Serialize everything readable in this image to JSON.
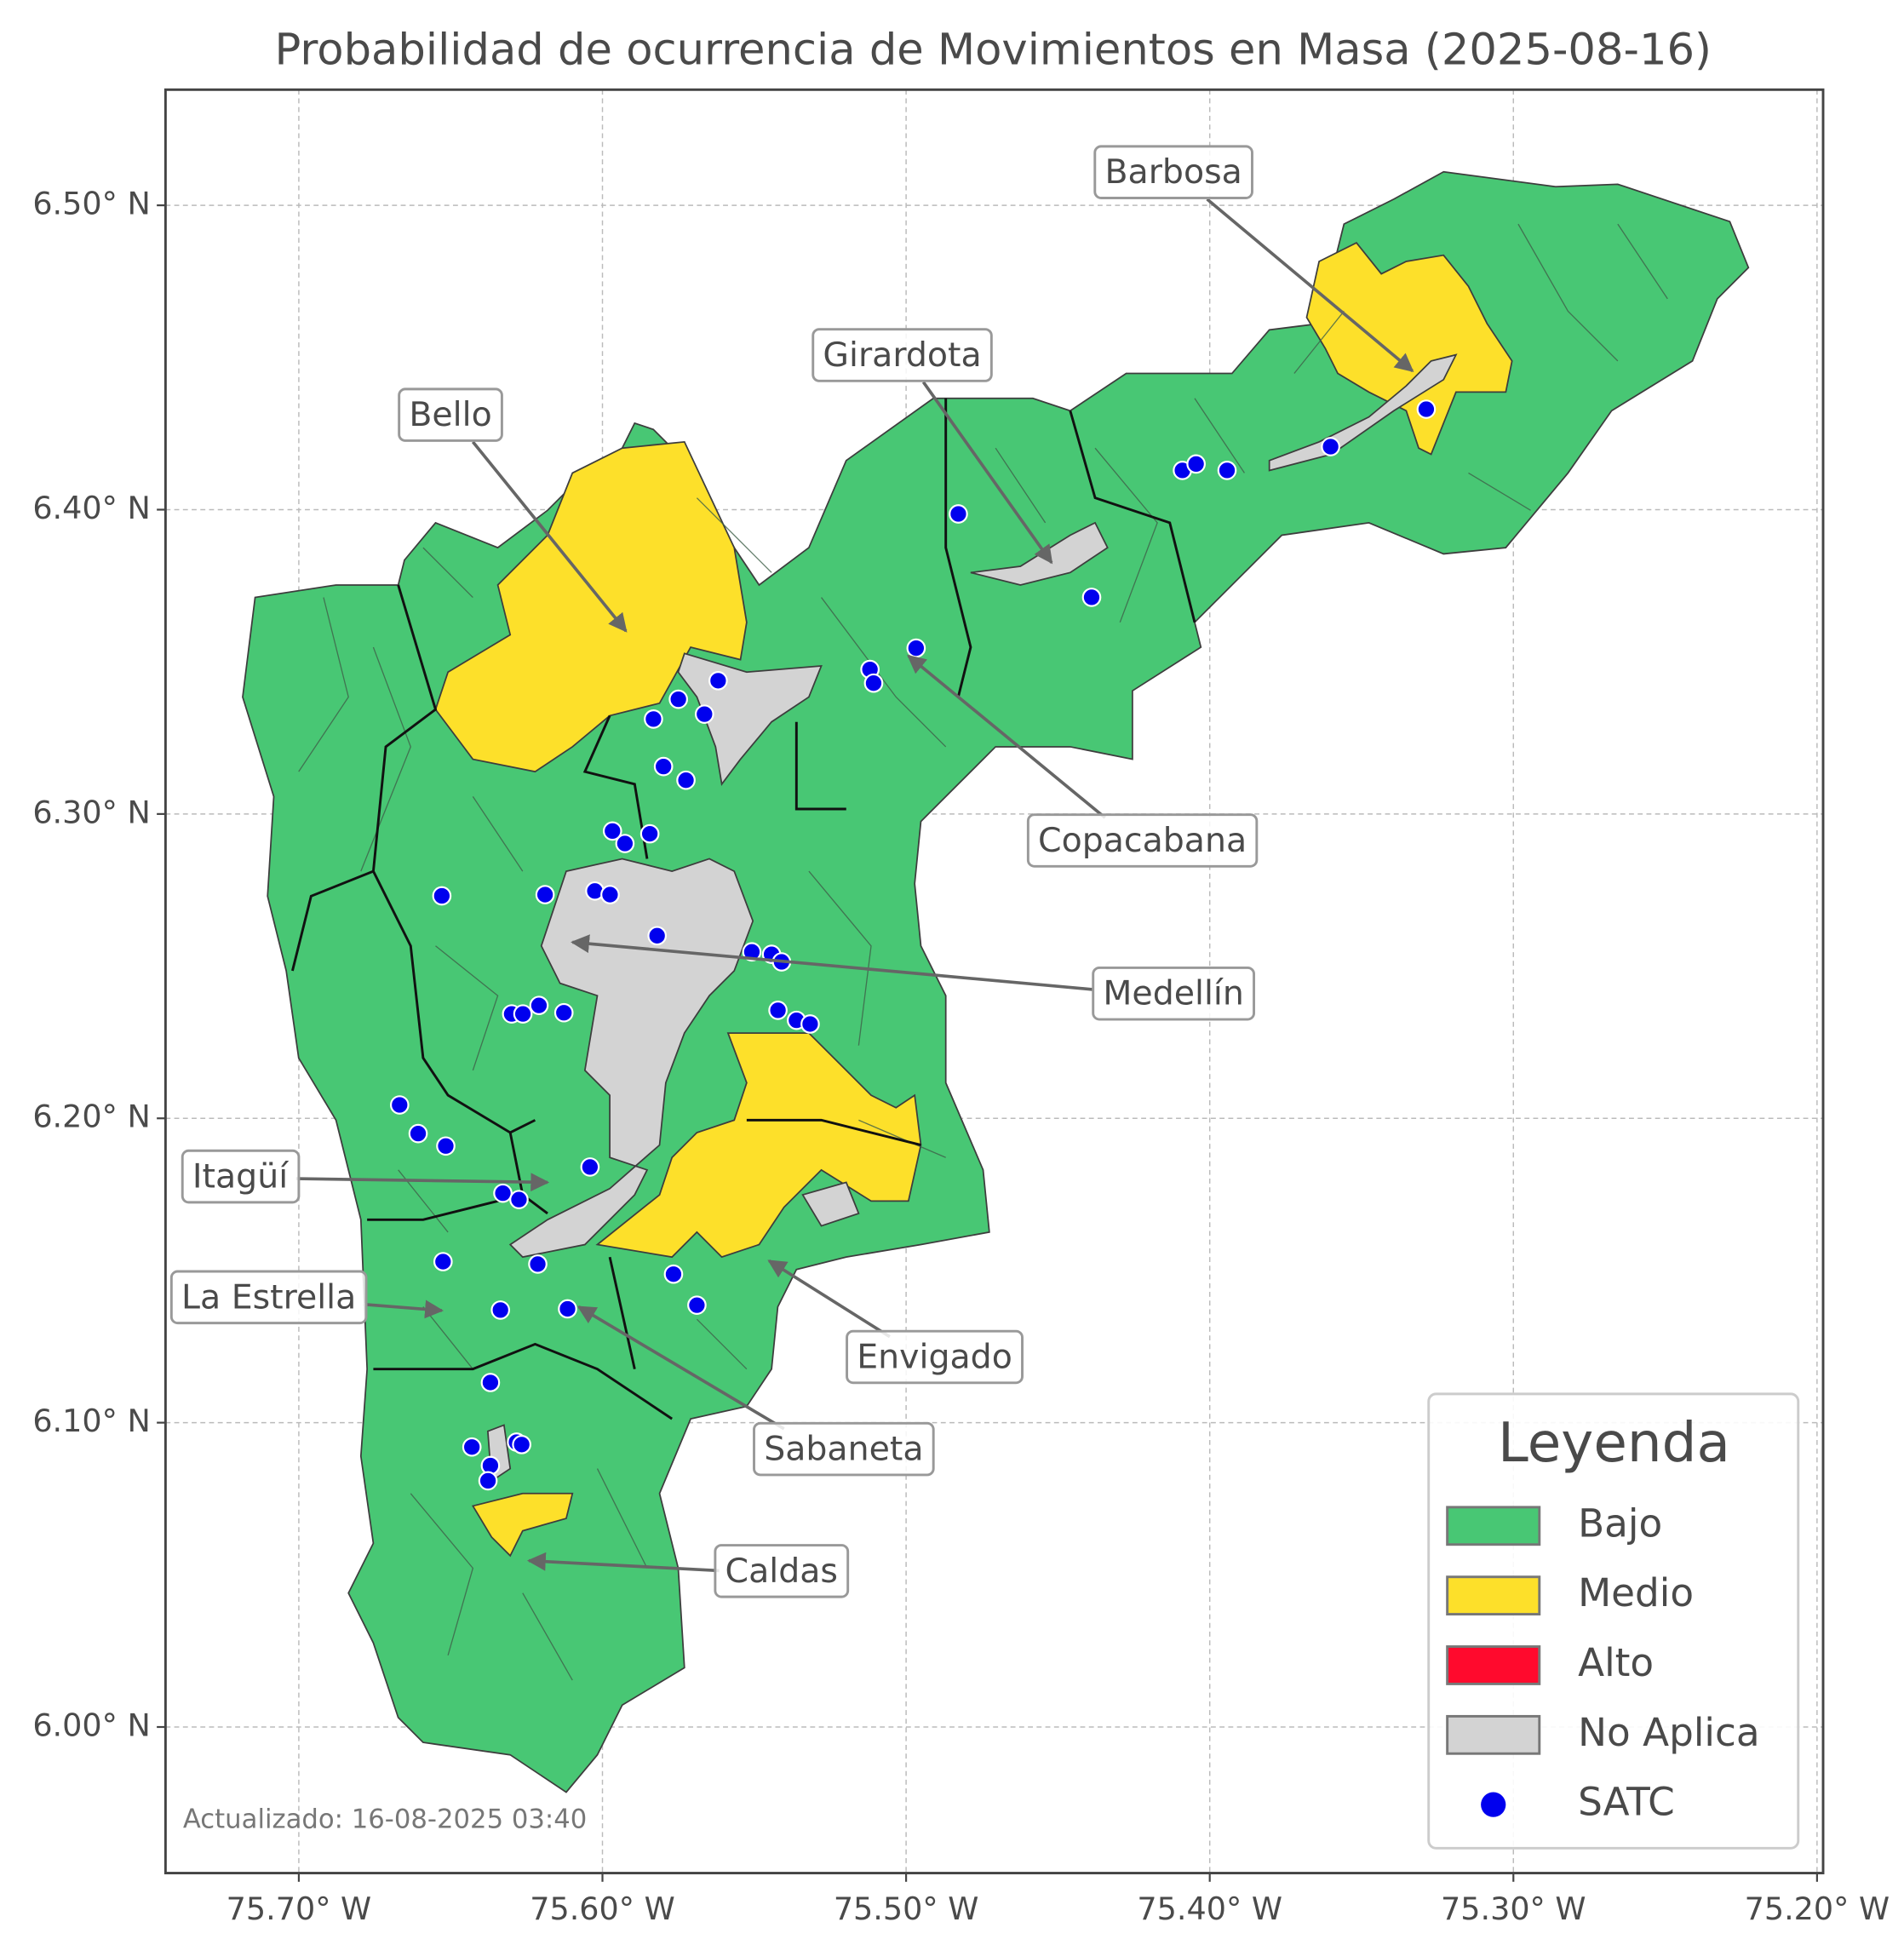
{
  "map": {
    "title": "Probabilidad de ocurrencia de Movimientos en Masa (2025-08-16)",
    "updated": "Actualizado: 16-08-2025 03:40",
    "xlim": [
      -75.7439,
      -75.198
    ],
    "ylim": [
      5.952,
      6.538
    ],
    "xticks": [
      {
        "value": -75.7,
        "label": "75.70° W"
      },
      {
        "value": -75.6,
        "label": "75.60° W"
      },
      {
        "value": -75.5,
        "label": "75.50° W"
      },
      {
        "value": -75.4,
        "label": "75.40° W"
      },
      {
        "value": -75.3,
        "label": "75.30° W"
      },
      {
        "value": -75.2,
        "label": "75.20° W"
      }
    ],
    "yticks": [
      {
        "value": 6.0,
        "label": "6.00° N"
      },
      {
        "value": 6.1,
        "label": "6.10° N"
      },
      {
        "value": 6.2,
        "label": "6.20° N"
      },
      {
        "value": 6.3,
        "label": "6.30° N"
      },
      {
        "value": 6.4,
        "label": "6.40° N"
      },
      {
        "value": 6.5,
        "label": "6.50° N"
      }
    ],
    "grid": true,
    "labels": [
      "Barbosa",
      "Girardota",
      "Bello",
      "Copacabana",
      "Medellín",
      "Itagüí",
      "La Estrella",
      "Envigado",
      "Sabaneta",
      "Caldas"
    ],
    "legend": {
      "title": "Leyenda",
      "entries": [
        {
          "name": "Bajo",
          "color": "#48c774"
        },
        {
          "name": "Medio",
          "color": "#fde02a"
        },
        {
          "name": "Alto",
          "color": "#ff0a2d"
        },
        {
          "name": "No Aplica",
          "color": "#d3d3d3"
        }
      ]
    },
    "satc": {
      "name": "SATC",
      "color": "#0000ee",
      "lon": [
        -75.4828,
        -75.409,
        -75.4045,
        -75.3943,
        -75.3602,
        -75.3287,
        -75.4389,
        -75.4967,
        -75.5119,
        -75.5107,
        -75.5619,
        -75.575,
        -75.5832,
        -75.5664,
        -75.5799,
        -75.5725,
        -75.5967,
        -75.5926,
        -75.5844,
        -75.6529,
        -75.6189,
        -75.6025,
        -75.5975,
        -75.582,
        -75.5508,
        -75.5443,
        -75.541,
        -75.6299,
        -75.6262,
        -75.6209,
        -75.6127,
        -75.5422,
        -75.5361,
        -75.5316,
        -75.6668,
        -75.6607,
        -75.6516,
        -75.6041,
        -75.6328,
        -75.6275,
        -75.6525,
        -75.6213,
        -75.5766,
        -75.5689,
        -75.6336,
        -75.6115,
        -75.6369,
        -75.643,
        -75.6283,
        -75.6266,
        -75.6369,
        -75.6377
      ],
      "lat": [
        6.3986,
        6.4129,
        6.415,
        6.4129,
        6.4207,
        6.433,
        6.3712,
        6.3545,
        6.3475,
        6.343,
        6.3438,
        6.3377,
        6.3312,
        6.3328,
        6.3156,
        6.3111,
        6.2944,
        6.2903,
        6.2935,
        6.2731,
        6.2735,
        6.2747,
        6.2735,
        6.26,
        6.2547,
        6.2539,
        6.2514,
        6.2343,
        6.2343,
        6.2371,
        6.2347,
        6.2355,
        6.2322,
        6.231,
        6.2044,
        6.195,
        6.1909,
        6.184,
        6.1754,
        6.1733,
        6.1529,
        6.1521,
        6.1488,
        6.1386,
        6.137,
        6.1374,
        6.1132,
        6.092,
        6.0936,
        6.0928,
        6.0859,
        6.0809
      ]
    }
  }
}
